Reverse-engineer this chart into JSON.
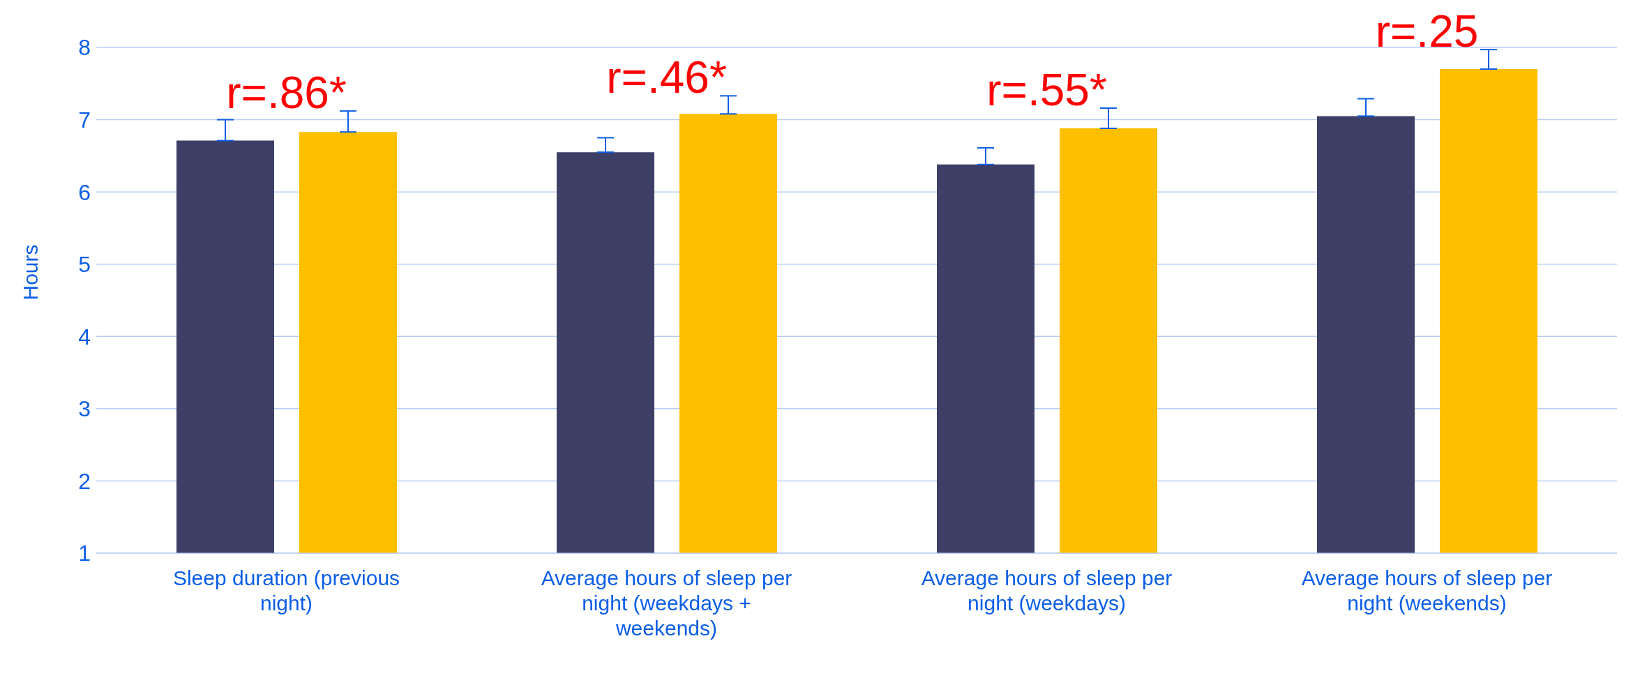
{
  "chart_data": {
    "type": "bar",
    "ylabel": "Hours",
    "categories": [
      "Sleep duration (previous night)",
      "Average hours of sleep per night (weekdays + weekends)",
      "Average hours of sleep per night (weekdays)",
      "Average hours of sleep per night (weekends)"
    ],
    "series": [
      {
        "color": "#3d3f66",
        "values": [
          6.71,
          6.55,
          6.38,
          7.05
        ],
        "errors": [
          [
            6.71,
            7.0
          ],
          [
            6.55,
            6.75
          ],
          [
            6.38,
            6.61
          ],
          [
            7.05,
            7.29
          ]
        ]
      },
      {
        "color": "#fdbf00",
        "values": [
          6.83,
          7.08,
          6.88,
          7.7
        ],
        "errors": [
          [
            6.83,
            7.12
          ],
          [
            7.08,
            7.33
          ],
          [
            6.88,
            7.16
          ],
          [
            7.7,
            7.97
          ]
        ]
      }
    ],
    "ylim": [
      1,
      8
    ],
    "yticks": [
      1,
      2,
      3,
      4,
      5,
      6,
      7,
      8
    ],
    "grid": "y",
    "legend": false,
    "annotations": [
      "r=.86*",
      "r=.46*",
      "r=.55*",
      "r=.25"
    ]
  }
}
